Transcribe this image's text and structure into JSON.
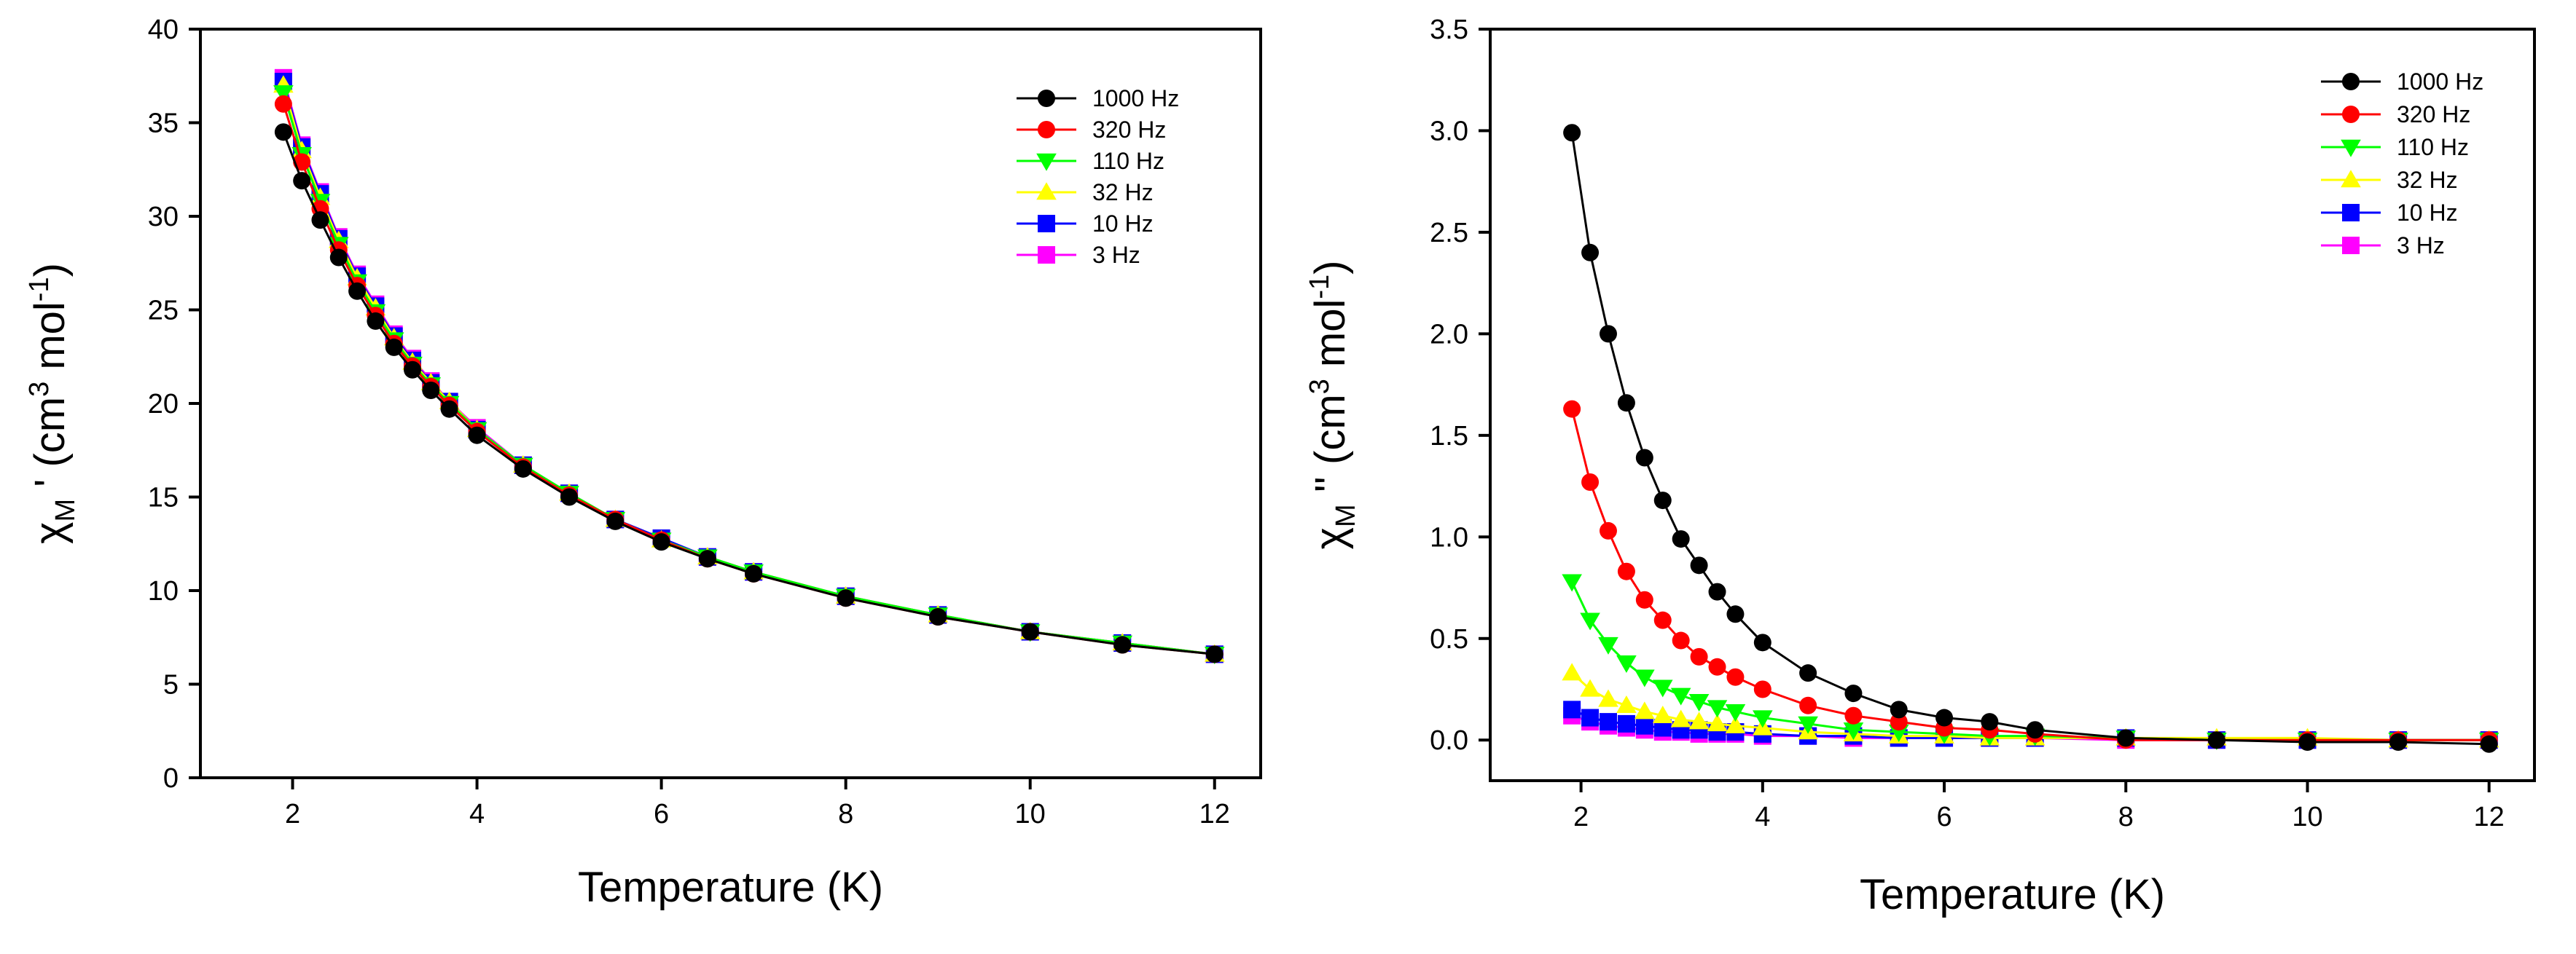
{
  "figure": {
    "panel_a_ylabel": {
      "chi": "χ",
      "sub": "M",
      "rest": " ' (cm",
      "sup1": "3",
      "mid": " mol",
      "sup2": "-1",
      "end": ")"
    },
    "panel_b_ylabel": {
      "chi": "χ",
      "sub": "M",
      "rest": " '' (cm",
      "sup1": "3",
      "mid": " mol",
      "sup2": "-1",
      "end": ")"
    }
  },
  "colors": {
    "1000 Hz": "#000000",
    "320 Hz": "#ff0000",
    "110 Hz": "#00ff00",
    "32 Hz": "#ffff00",
    "10 Hz": "#0000ff",
    "3 Hz": "#ff00ff"
  },
  "chart_data": [
    {
      "type": "line",
      "panel": "left",
      "title": "",
      "xlabel": "Temperature (K)",
      "ylabel": "χM ' (cm3 mol-1)",
      "xlim": [
        1,
        12.5
      ],
      "ylim": [
        0,
        40
      ],
      "xticks": [
        2,
        4,
        6,
        8,
        10,
        12
      ],
      "yticks": [
        0,
        5,
        10,
        15,
        20,
        25,
        30,
        35,
        40
      ],
      "legend_position": "top-right",
      "x": [
        1.9,
        2.1,
        2.3,
        2.5,
        2.7,
        2.9,
        3.1,
        3.3,
        3.5,
        3.7,
        4.0,
        4.5,
        5.0,
        5.5,
        6.0,
        6.5,
        7.0,
        8.0,
        9.0,
        10.0,
        11.0,
        12.0
      ],
      "series": [
        {
          "name": "1000 Hz",
          "marker": "circle",
          "values": [
            34.5,
            31.9,
            29.8,
            27.8,
            26.0,
            24.4,
            23.0,
            21.8,
            20.7,
            19.7,
            18.3,
            16.5,
            15.0,
            13.7,
            12.6,
            11.7,
            10.9,
            9.6,
            8.6,
            7.8,
            7.1,
            6.6
          ]
        },
        {
          "name": "320 Hz",
          "marker": "circle",
          "values": [
            36.0,
            32.9,
            30.4,
            28.2,
            26.3,
            24.7,
            23.2,
            22.0,
            20.9,
            19.9,
            18.5,
            16.6,
            15.1,
            13.8,
            12.7,
            11.7,
            10.9,
            9.6,
            8.6,
            7.8,
            7.1,
            6.6
          ]
        },
        {
          "name": "110 Hz",
          "marker": "triangle-down",
          "values": [
            36.6,
            33.3,
            30.8,
            28.5,
            26.5,
            24.9,
            23.4,
            22.1,
            21.0,
            20.0,
            18.6,
            16.7,
            15.2,
            13.8,
            12.7,
            11.8,
            11.0,
            9.7,
            8.7,
            7.8,
            7.2,
            6.6
          ]
        },
        {
          "name": "32 Hz",
          "marker": "triangle-up",
          "values": [
            37.0,
            33.5,
            31.0,
            28.7,
            26.7,
            25.1,
            23.5,
            22.2,
            21.1,
            20.1,
            18.6,
            16.7,
            15.2,
            13.8,
            12.7,
            11.8,
            11.0,
            9.7,
            8.7,
            7.8,
            7.2,
            6.6
          ]
        },
        {
          "name": "10 Hz",
          "marker": "square",
          "values": [
            37.2,
            33.7,
            31.2,
            28.8,
            26.8,
            25.2,
            23.6,
            22.3,
            21.1,
            20.1,
            18.6,
            16.7,
            15.2,
            13.8,
            12.8,
            11.8,
            11.0,
            9.7,
            8.7,
            7.8,
            7.2,
            6.6
          ]
        },
        {
          "name": "3 Hz",
          "marker": "square",
          "values": [
            37.4,
            33.8,
            31.3,
            28.9,
            26.9,
            25.3,
            23.7,
            22.4,
            21.2,
            20.1,
            18.7,
            16.7,
            15.2,
            13.8,
            12.8,
            11.8,
            11.0,
            9.7,
            8.7,
            7.8,
            7.2,
            6.6
          ]
        }
      ]
    },
    {
      "type": "line",
      "panel": "right",
      "title": "",
      "xlabel": "Temperature (K)",
      "ylabel": "χM '' (cm3 mol-1)",
      "xlim": [
        1,
        12.5
      ],
      "ylim": [
        -0.2,
        3.5
      ],
      "xticks": [
        2,
        4,
        6,
        8,
        10,
        12
      ],
      "yticks": [
        0.0,
        0.5,
        1.0,
        1.5,
        2.0,
        2.5,
        3.0,
        3.5
      ],
      "legend_position": "top-right",
      "x": [
        1.9,
        2.1,
        2.3,
        2.5,
        2.7,
        2.9,
        3.1,
        3.3,
        3.5,
        3.7,
        4.0,
        4.5,
        5.0,
        5.5,
        6.0,
        6.5,
        7.0,
        8.0,
        9.0,
        10.0,
        11.0,
        12.0
      ],
      "series": [
        {
          "name": "1000 Hz",
          "marker": "circle",
          "values": [
            2.99,
            2.4,
            2.0,
            1.66,
            1.39,
            1.18,
            0.99,
            0.86,
            0.73,
            0.62,
            0.48,
            0.33,
            0.23,
            0.15,
            0.11,
            0.09,
            0.05,
            0.01,
            0.0,
            -0.01,
            -0.01,
            -0.02
          ]
        },
        {
          "name": "320 Hz",
          "marker": "circle",
          "values": [
            1.63,
            1.27,
            1.03,
            0.83,
            0.69,
            0.59,
            0.49,
            0.41,
            0.36,
            0.31,
            0.25,
            0.17,
            0.12,
            0.09,
            0.06,
            0.05,
            0.03,
            0.0,
            0.0,
            0.0,
            0.0,
            0.0
          ]
        },
        {
          "name": "110 Hz",
          "marker": "triangle-down",
          "values": [
            0.78,
            0.59,
            0.47,
            0.38,
            0.31,
            0.26,
            0.22,
            0.19,
            0.16,
            0.14,
            0.11,
            0.08,
            0.05,
            0.04,
            0.03,
            0.02,
            0.02,
            0.01,
            0.0,
            0.0,
            0.0,
            0.0
          ]
        },
        {
          "name": "32 Hz",
          "marker": "triangle-up",
          "values": [
            0.33,
            0.25,
            0.2,
            0.17,
            0.14,
            0.12,
            0.1,
            0.09,
            0.08,
            0.07,
            0.06,
            0.04,
            0.03,
            0.02,
            0.02,
            0.01,
            0.01,
            0.01,
            0.01,
            0.01,
            0.0,
            0.0
          ]
        },
        {
          "name": "10 Hz",
          "marker": "square",
          "values": [
            0.15,
            0.11,
            0.09,
            0.08,
            0.07,
            0.06,
            0.05,
            0.05,
            0.04,
            0.04,
            0.03,
            0.02,
            0.02,
            0.01,
            0.01,
            0.01,
            0.01,
            0.01,
            0.0,
            0.0,
            0.0,
            0.0
          ]
        },
        {
          "name": "3 Hz",
          "marker": "square",
          "values": [
            0.12,
            0.09,
            0.07,
            0.06,
            0.05,
            0.04,
            0.04,
            0.03,
            0.03,
            0.03,
            0.02,
            0.02,
            0.01,
            0.01,
            0.01,
            0.01,
            0.01,
            0.0,
            0.0,
            0.0,
            0.0,
            0.0
          ]
        }
      ]
    }
  ]
}
